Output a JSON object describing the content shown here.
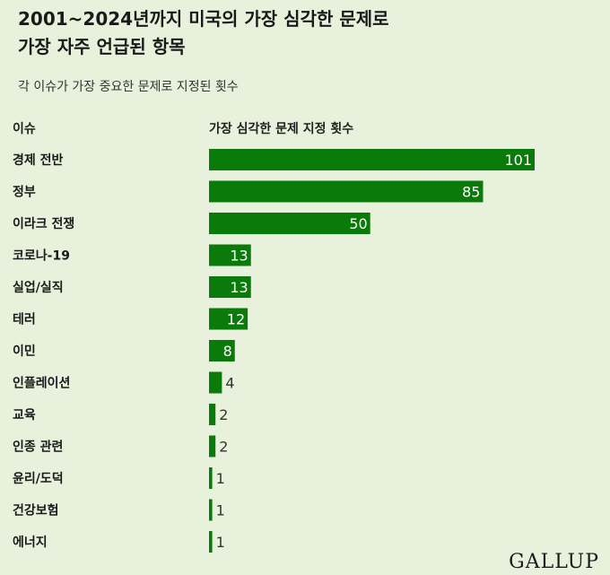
{
  "title_line1": "2001~2024년까지 미국의 가장 심각한 문제로",
  "title_line2": "가장 자주 언급된 항목",
  "subtitle": "각 이슈가 가장 중요한 문제로 지정된 횟수",
  "column_headers": {
    "issue": "이슈",
    "count": "가장 심각한 문제 지정 횟수"
  },
  "logo": "GALLUP",
  "colors": {
    "background": "#e8f1dc",
    "bar": "#0a7a0a",
    "label_inside": "#ffffff",
    "label_outside": "#333333"
  },
  "chart_data": {
    "type": "bar",
    "orientation": "horizontal",
    "categories": [
      "경제 전반",
      "정부",
      "이라크 전쟁",
      "코로나-19",
      "실업/실직",
      "테러",
      "이민",
      "인플레이션",
      "교육",
      "인종 관련",
      "윤리/도덕",
      "건강보험",
      "에너지"
    ],
    "values": [
      101,
      85,
      50,
      13,
      13,
      12,
      8,
      4,
      2,
      2,
      1,
      1,
      1
    ],
    "data_labels": [
      "101",
      "85",
      "50",
      "13",
      "13",
      "12",
      "8",
      "4",
      "2",
      "2",
      "1",
      "1",
      "1"
    ],
    "title": "2001~2024년까지 미국의 가장 심각한 문제로 가장 자주 언급된 항목",
    "xlabel": "가장 심각한 문제 지정 횟수",
    "ylabel": "이슈",
    "xlim": [
      0,
      101
    ],
    "grid": false,
    "legend": "none"
  }
}
